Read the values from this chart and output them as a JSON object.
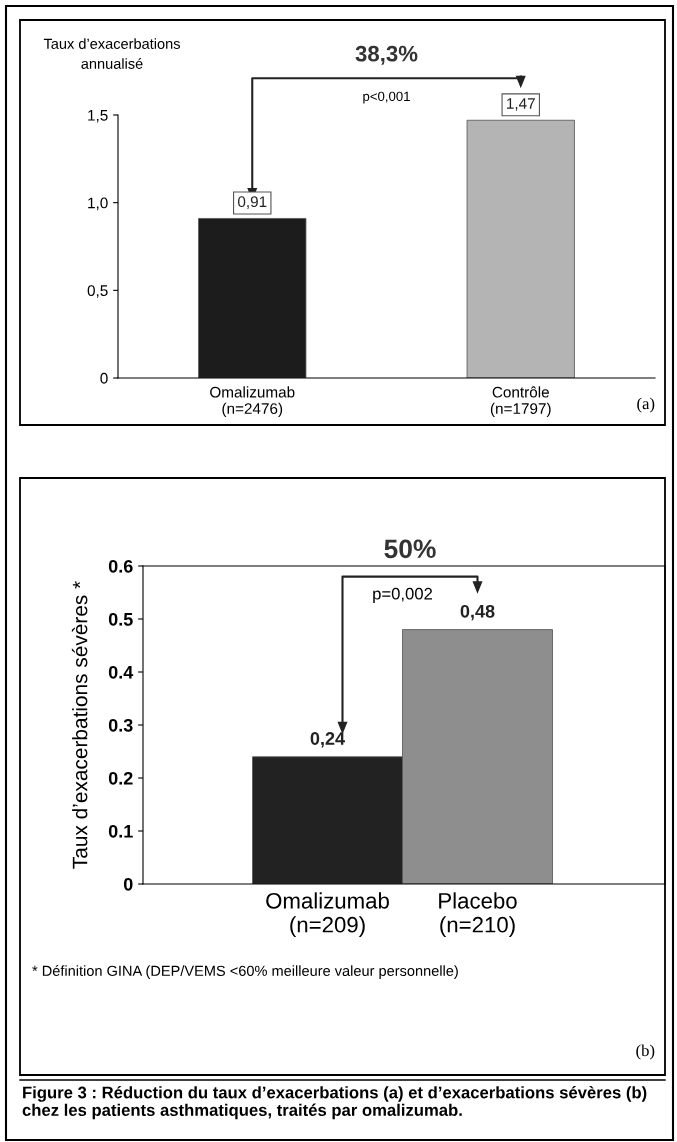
{
  "chart_data": [
    {
      "type": "bar",
      "ylabel": "Taux d’exacerbations\nannualisé",
      "categories": [
        "Omalizumab\n(n=2476)",
        "Contrôle\n(n=1797)"
      ],
      "values": [
        0.91,
        1.47
      ],
      "colors": [
        "#1c1c1c",
        "#b4b4b4"
      ],
      "value_labels": [
        "0,91",
        "1,47"
      ],
      "ylim": [
        0,
        1.5
      ],
      "yticks": [
        {
          "value": 0,
          "label": "0"
        },
        {
          "value": 0.5,
          "label": "0,5"
        },
        {
          "value": 1.0,
          "label": "1,0"
        },
        {
          "value": 1.5,
          "label": "1,5"
        }
      ],
      "grid": false,
      "legend": false,
      "annotations": [
        "38,3%",
        "p<0,001",
        "(a)"
      ]
    },
    {
      "type": "bar",
      "ylabel": "Taux d’exacerbations sévères *",
      "categories": [
        "Omalizumab\n(n=209)",
        "Placebo\n(n=210)"
      ],
      "values": [
        0.24,
        0.48
      ],
      "colors": [
        "#222222",
        "#8e8e8e"
      ],
      "value_labels": [
        "0,24",
        "0,48"
      ],
      "ylim": [
        0,
        0.6
      ],
      "yticks": [
        0,
        0.1,
        0.2,
        0.3,
        0.4,
        0.5,
        0.6
      ],
      "grid": false,
      "legend": false,
      "annotations": [
        "50%",
        "p=0,002",
        "* Définition GINA (DEP/VEMS <60% meilleure valeur personnelle)",
        "(b)",
        "Figure 3 : Réduction du taux d’exacerbations (a) et d’exacerbations sévères (b) chez les patients asthmatiques, traités par omalizumab."
      ]
    }
  ]
}
